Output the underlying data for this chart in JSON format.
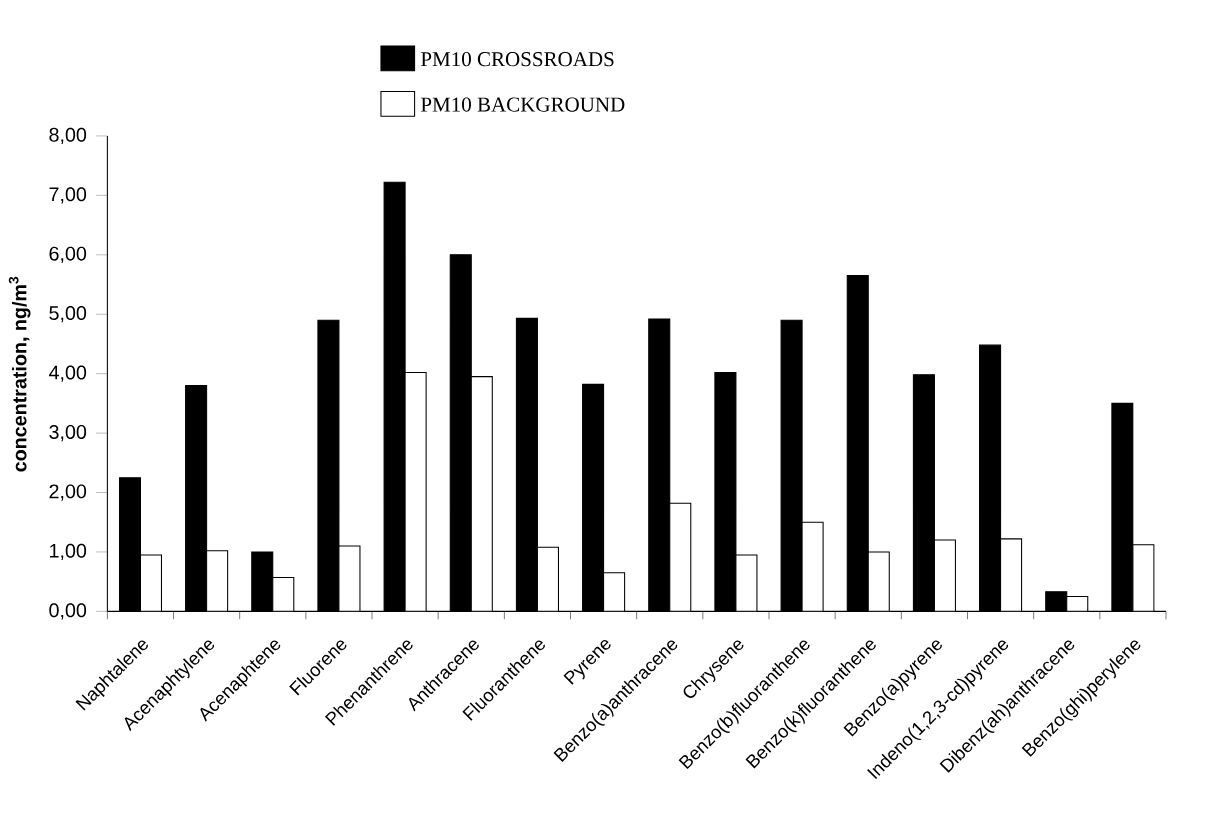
{
  "chart_data": {
    "type": "bar",
    "ylabel": "concentration, ng/m$^{3}$",
    "categories": [
      "Naphtalene",
      "Acenaphtylene",
      "Acenaphtene",
      "Fluorene",
      "Phenanthrene",
      "Anthracene",
      "Fluoranthene",
      "Pyrene",
      "Benzo(a)anthracene",
      "Chrysene",
      "Benzo(b)fluoranthene",
      "Benzo(k)fluoranthene",
      "Benzo(a)pyrene",
      "Indeno(1,2,3-cd)pyrene",
      "Dibenz(ah)anthracene",
      "Benzo(ghi)perylene"
    ],
    "series": [
      {
        "name": "PM10 CROSSROADS",
        "color": "#000000",
        "values": [
          2.25,
          3.8,
          1.0,
          4.9,
          7.22,
          6.0,
          4.93,
          3.82,
          4.92,
          4.02,
          4.9,
          5.65,
          3.98,
          4.48,
          0.33,
          3.5
        ]
      },
      {
        "name": "PM10 BACKGROUND",
        "color": "#ffffff",
        "values": [
          0.95,
          1.02,
          0.57,
          1.1,
          4.02,
          3.95,
          1.08,
          0.65,
          1.82,
          0.95,
          1.5,
          1.0,
          1.2,
          1.22,
          0.25,
          1.12
        ]
      }
    ],
    "ylim": [
      0,
      8
    ],
    "yticks": [
      {
        "value": 0,
        "label": "0,00"
      },
      {
        "value": 1,
        "label": "1,00"
      },
      {
        "value": 2,
        "label": "2,00"
      },
      {
        "value": 3,
        "label": "3,00"
      },
      {
        "value": 4,
        "label": "4,00"
      },
      {
        "value": 5,
        "label": "5,00"
      },
      {
        "value": 6,
        "label": "6,00"
      },
      {
        "value": 7,
        "label": "7,00"
      },
      {
        "value": 8,
        "label": "8,00"
      }
    ],
    "grid": false,
    "legend": "top"
  }
}
